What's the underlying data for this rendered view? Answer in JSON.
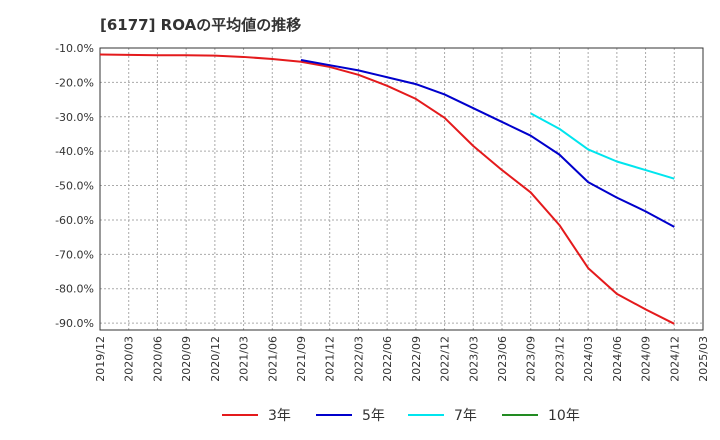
{
  "chart_data": {
    "type": "line",
    "title": "[6177]  ROAの平均値の推移",
    "xlabel": "",
    "ylabel": "",
    "categories": [
      "2019/12",
      "2020/03",
      "2020/06",
      "2020/09",
      "2020/12",
      "2021/03",
      "2021/06",
      "2021/09",
      "2021/12",
      "2022/03",
      "2022/06",
      "2022/09",
      "2022/12",
      "2023/03",
      "2023/06",
      "2023/09",
      "2023/12",
      "2024/03",
      "2024/06",
      "2024/09",
      "2024/12",
      "2025/03"
    ],
    "y_ticks": [
      "-10.0%",
      "-20.0%",
      "-30.0%",
      "-40.0%",
      "-50.0%",
      "-60.0%",
      "-70.0%",
      "-80.0%",
      "-90.0%"
    ],
    "ylim": [
      -92,
      -10
    ],
    "grid": true,
    "legend_position": "bottom",
    "series": [
      {
        "name": "3年",
        "color": "#e41a1c",
        "values": [
          -11.9,
          -12.0,
          -12.1,
          -12.1,
          -12.2,
          -12.6,
          -13.2,
          -14.0,
          -15.5,
          -17.8,
          -21.0,
          -24.8,
          -30.3,
          -38.5,
          -45.5,
          -52.0,
          -61.5,
          -74.0,
          -81.5,
          -86.0,
          -90.2,
          null
        ]
      },
      {
        "name": "5年",
        "color": "#0000cc",
        "values": [
          null,
          null,
          null,
          null,
          null,
          null,
          null,
          -13.5,
          -15.0,
          -16.5,
          -18.5,
          -20.5,
          -23.5,
          -27.5,
          -31.5,
          -35.5,
          -41.0,
          -49.0,
          -53.5,
          -57.5,
          -62.0,
          null
        ]
      },
      {
        "name": "7年",
        "color": "#00e5ee",
        "values": [
          null,
          null,
          null,
          null,
          null,
          null,
          null,
          null,
          null,
          null,
          null,
          null,
          null,
          null,
          null,
          -29.0,
          -33.5,
          -39.5,
          -43.0,
          -45.5,
          -48.0,
          null
        ]
      },
      {
        "name": "10年",
        "color": "#228b22",
        "values": [
          null,
          null,
          null,
          null,
          null,
          null,
          null,
          null,
          null,
          null,
          null,
          null,
          null,
          null,
          null,
          null,
          null,
          null,
          null,
          null,
          null,
          null
        ]
      }
    ]
  }
}
